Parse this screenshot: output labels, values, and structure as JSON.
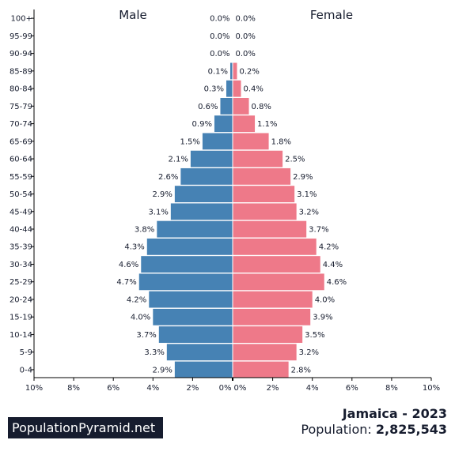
{
  "chart_data": {
    "type": "bar",
    "orientation": "horizontal-population-pyramid",
    "title": "Jamaica - 2023",
    "categories": [
      "100+",
      "95-99",
      "90-94",
      "85-89",
      "80-84",
      "75-79",
      "70-74",
      "65-69",
      "60-64",
      "55-59",
      "50-54",
      "45-49",
      "40-44",
      "35-39",
      "30-34",
      "25-29",
      "20-24",
      "15-19",
      "10-14",
      "5-9",
      "0-4"
    ],
    "series": [
      {
        "name": "Male",
        "color": "#4682b4",
        "values": [
          0.0,
          0.0,
          0.0,
          0.1,
          0.3,
          0.6,
          0.9,
          1.5,
          2.1,
          2.6,
          2.9,
          3.1,
          3.8,
          4.3,
          4.6,
          4.7,
          4.2,
          4.0,
          3.7,
          3.3,
          2.9
        ],
        "value_labels": [
          "0.0%",
          "0.0%",
          "0.0%",
          "0.1%",
          "0.3%",
          "0.6%",
          "0.9%",
          "1.5%",
          "2.1%",
          "2.6%",
          "2.9%",
          "3.1%",
          "3.8%",
          "4.3%",
          "4.6%",
          "4.7%",
          "4.2%",
          "4.0%",
          "3.7%",
          "3.3%",
          "2.9%"
        ]
      },
      {
        "name": "Female",
        "color": "#ee7989",
        "values": [
          0.0,
          0.0,
          0.0,
          0.2,
          0.4,
          0.8,
          1.1,
          1.8,
          2.5,
          2.9,
          3.1,
          3.2,
          3.7,
          4.2,
          4.4,
          4.6,
          4.0,
          3.9,
          3.5,
          3.2,
          2.8
        ],
        "value_labels": [
          "0.0%",
          "0.0%",
          "0.0%",
          "0.2%",
          "0.4%",
          "0.8%",
          "1.1%",
          "1.8%",
          "2.5%",
          "2.9%",
          "3.1%",
          "3.2%",
          "3.7%",
          "4.2%",
          "4.4%",
          "4.6%",
          "4.0%",
          "3.9%",
          "3.5%",
          "3.2%",
          "2.8%"
        ]
      }
    ],
    "xlim": [
      0,
      10
    ],
    "x_ticks_left": [
      "10%",
      "8%",
      "6%",
      "4%",
      "2%",
      "0%"
    ],
    "x_ticks_right": [
      "0%",
      "2%",
      "4%",
      "6%",
      "8%",
      "10%"
    ],
    "grid": false,
    "legend": "top"
  },
  "footer": {
    "brand": "PopulationPyramid.net",
    "country_year": "Jamaica - 2023",
    "population_label": "Population:",
    "population_value": "2,825,543"
  }
}
